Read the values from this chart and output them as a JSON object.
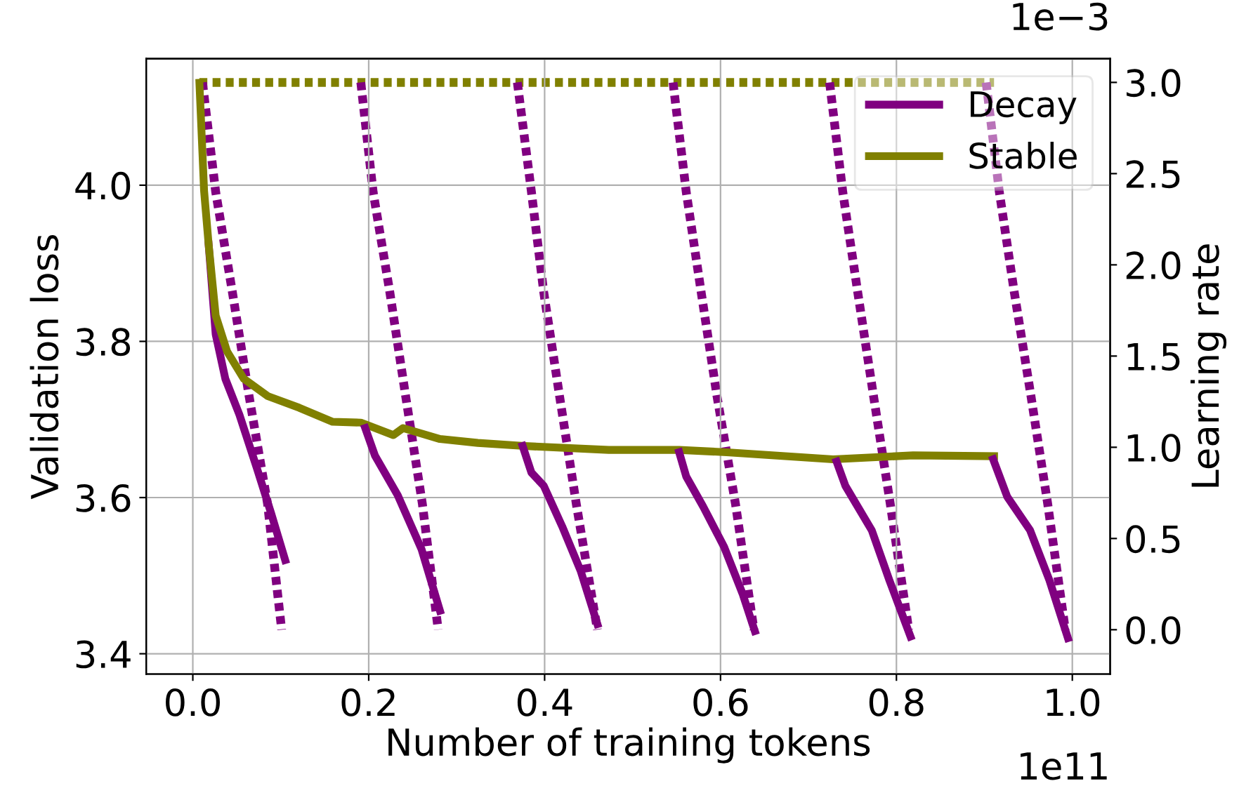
{
  "chart_data": {
    "type": "line",
    "xlabel": "Number of training tokens",
    "ylabel": "Validation loss",
    "y2label": "Learning rate",
    "annotations": [
      "1e11",
      "1e−3"
    ],
    "xlim": [
      -0.053,
      1.043
    ],
    "xticks": [
      {
        "value": 0,
        "label": "0.0"
      },
      0.2,
      0.4,
      0.6,
      0.8,
      {
        "value": 1,
        "label": "1.0"
      }
    ],
    "ylim": [
      3.374,
      4.162
    ],
    "yticks": [
      3.4,
      3.6,
      3.8,
      {
        "value": 4,
        "label": "4.0"
      }
    ],
    "y2lim": [
      -0.243,
      3.13
    ],
    "y2ticks": [
      {
        "value": 0,
        "label": "0.0"
      },
      0.5,
      {
        "value": 1,
        "label": "1.0"
      },
      1.5,
      {
        "value": 2,
        "label": "2.0"
      },
      2.5,
      {
        "value": 3,
        "label": "3.0"
      }
    ],
    "grid": true,
    "legend": "top right",
    "marker": "none",
    "series": [
      {
        "name": "Decay",
        "color": "#800080",
        "line_style": "solid",
        "x": [
          0.018,
          0.026,
          0.037,
          0.053,
          0.073,
          0.089,
          0.105
        ],
        "values": [
          3.924,
          3.809,
          3.752,
          3.706,
          3.637,
          3.58,
          3.52
        ]
      },
      {
        "name": "Stable",
        "color": "#808000",
        "line_style": "solid",
        "x": [
          0.0075,
          0.0128,
          0.018,
          0.026,
          0.039,
          0.058,
          0.085,
          0.121,
          0.159,
          0.191,
          0.228,
          0.239,
          0.281,
          0.324,
          0.377,
          0.473,
          0.553,
          0.607,
          0.728,
          0.819,
          0.911
        ],
        "values": [
          4.131,
          3.993,
          3.924,
          3.833,
          3.787,
          3.752,
          3.73,
          3.715,
          3.697,
          3.696,
          3.68,
          3.689,
          3.675,
          3.67,
          3.666,
          3.661,
          3.661,
          3.658,
          3.649,
          3.654,
          3.653
        ]
      },
      {
        "color": "#800080",
        "line_style": "solid",
        "x": [
          0.196,
          0.207,
          0.233,
          0.26,
          0.281
        ],
        "values": [
          3.689,
          3.654,
          3.603,
          3.534,
          3.455
        ]
      },
      {
        "color": "#800080",
        "line_style": "solid",
        "x": [
          0.375,
          0.385,
          0.399,
          0.42,
          0.441,
          0.46
        ],
        "values": [
          3.666,
          3.632,
          3.615,
          3.563,
          3.506,
          3.438
        ]
      },
      {
        "color": "#800080",
        "line_style": "solid",
        "x": [
          0.553,
          0.561,
          0.58,
          0.604,
          0.625,
          0.639
        ],
        "values": [
          3.658,
          3.627,
          3.589,
          3.537,
          3.477,
          3.429
        ]
      },
      {
        "color": "#800080",
        "line_style": "solid",
        "x": [
          0.732,
          0.742,
          0.772,
          0.792,
          0.816
        ],
        "values": [
          3.646,
          3.615,
          3.558,
          3.494,
          3.422
        ]
      },
      {
        "color": "#800080",
        "line_style": "solid",
        "x": [
          0.91,
          0.926,
          0.952,
          0.974,
          0.995
        ],
        "values": [
          3.649,
          3.601,
          3.558,
          3.494,
          3.42
        ]
      },
      {
        "color": "#808000",
        "line_style": "dotted",
        "axis": "y2",
        "x": [
          0.0075,
          0.911
        ],
        "values": [
          3.0,
          3.0
        ]
      },
      {
        "color": "#800080",
        "line_style": "dotted",
        "axis": "y2",
        "x": [
          0.011,
          0.026,
          0.045,
          0.064,
          0.085,
          0.101
        ],
        "values": [
          3.0,
          2.4,
          1.85,
          1.28,
          0.69,
          0.0
        ]
      },
      {
        "color": "#800080",
        "line_style": "dotted",
        "axis": "y2",
        "x": [
          0.191,
          0.205,
          0.224,
          0.242,
          0.261,
          0.279
        ],
        "values": [
          3.0,
          2.4,
          1.85,
          1.28,
          0.69,
          0.0
        ]
      },
      {
        "color": "#800080",
        "line_style": "dotted",
        "axis": "y2",
        "x": [
          0.369,
          0.385,
          0.399,
          0.417,
          0.436,
          0.46
        ],
        "values": [
          3.0,
          2.4,
          1.85,
          1.28,
          0.69,
          0.0
        ]
      },
      {
        "color": "#800080",
        "line_style": "dotted",
        "axis": "y2",
        "x": [
          0.546,
          0.561,
          0.578,
          0.596,
          0.617,
          0.638
        ],
        "values": [
          3.0,
          2.4,
          1.85,
          1.28,
          0.69,
          0.0
        ]
      },
      {
        "color": "#800080",
        "line_style": "dotted",
        "axis": "y2",
        "x": [
          0.724,
          0.739,
          0.756,
          0.774,
          0.793,
          0.814
        ],
        "values": [
          3.0,
          2.4,
          1.85,
          1.28,
          0.69,
          0.0
        ]
      },
      {
        "color": "#800080",
        "line_style": "dotted",
        "axis": "y2",
        "x": [
          0.902,
          0.917,
          0.934,
          0.953,
          0.972,
          0.992
        ],
        "values": [
          3.0,
          2.4,
          1.85,
          1.28,
          0.69,
          0.0
        ]
      }
    ]
  }
}
